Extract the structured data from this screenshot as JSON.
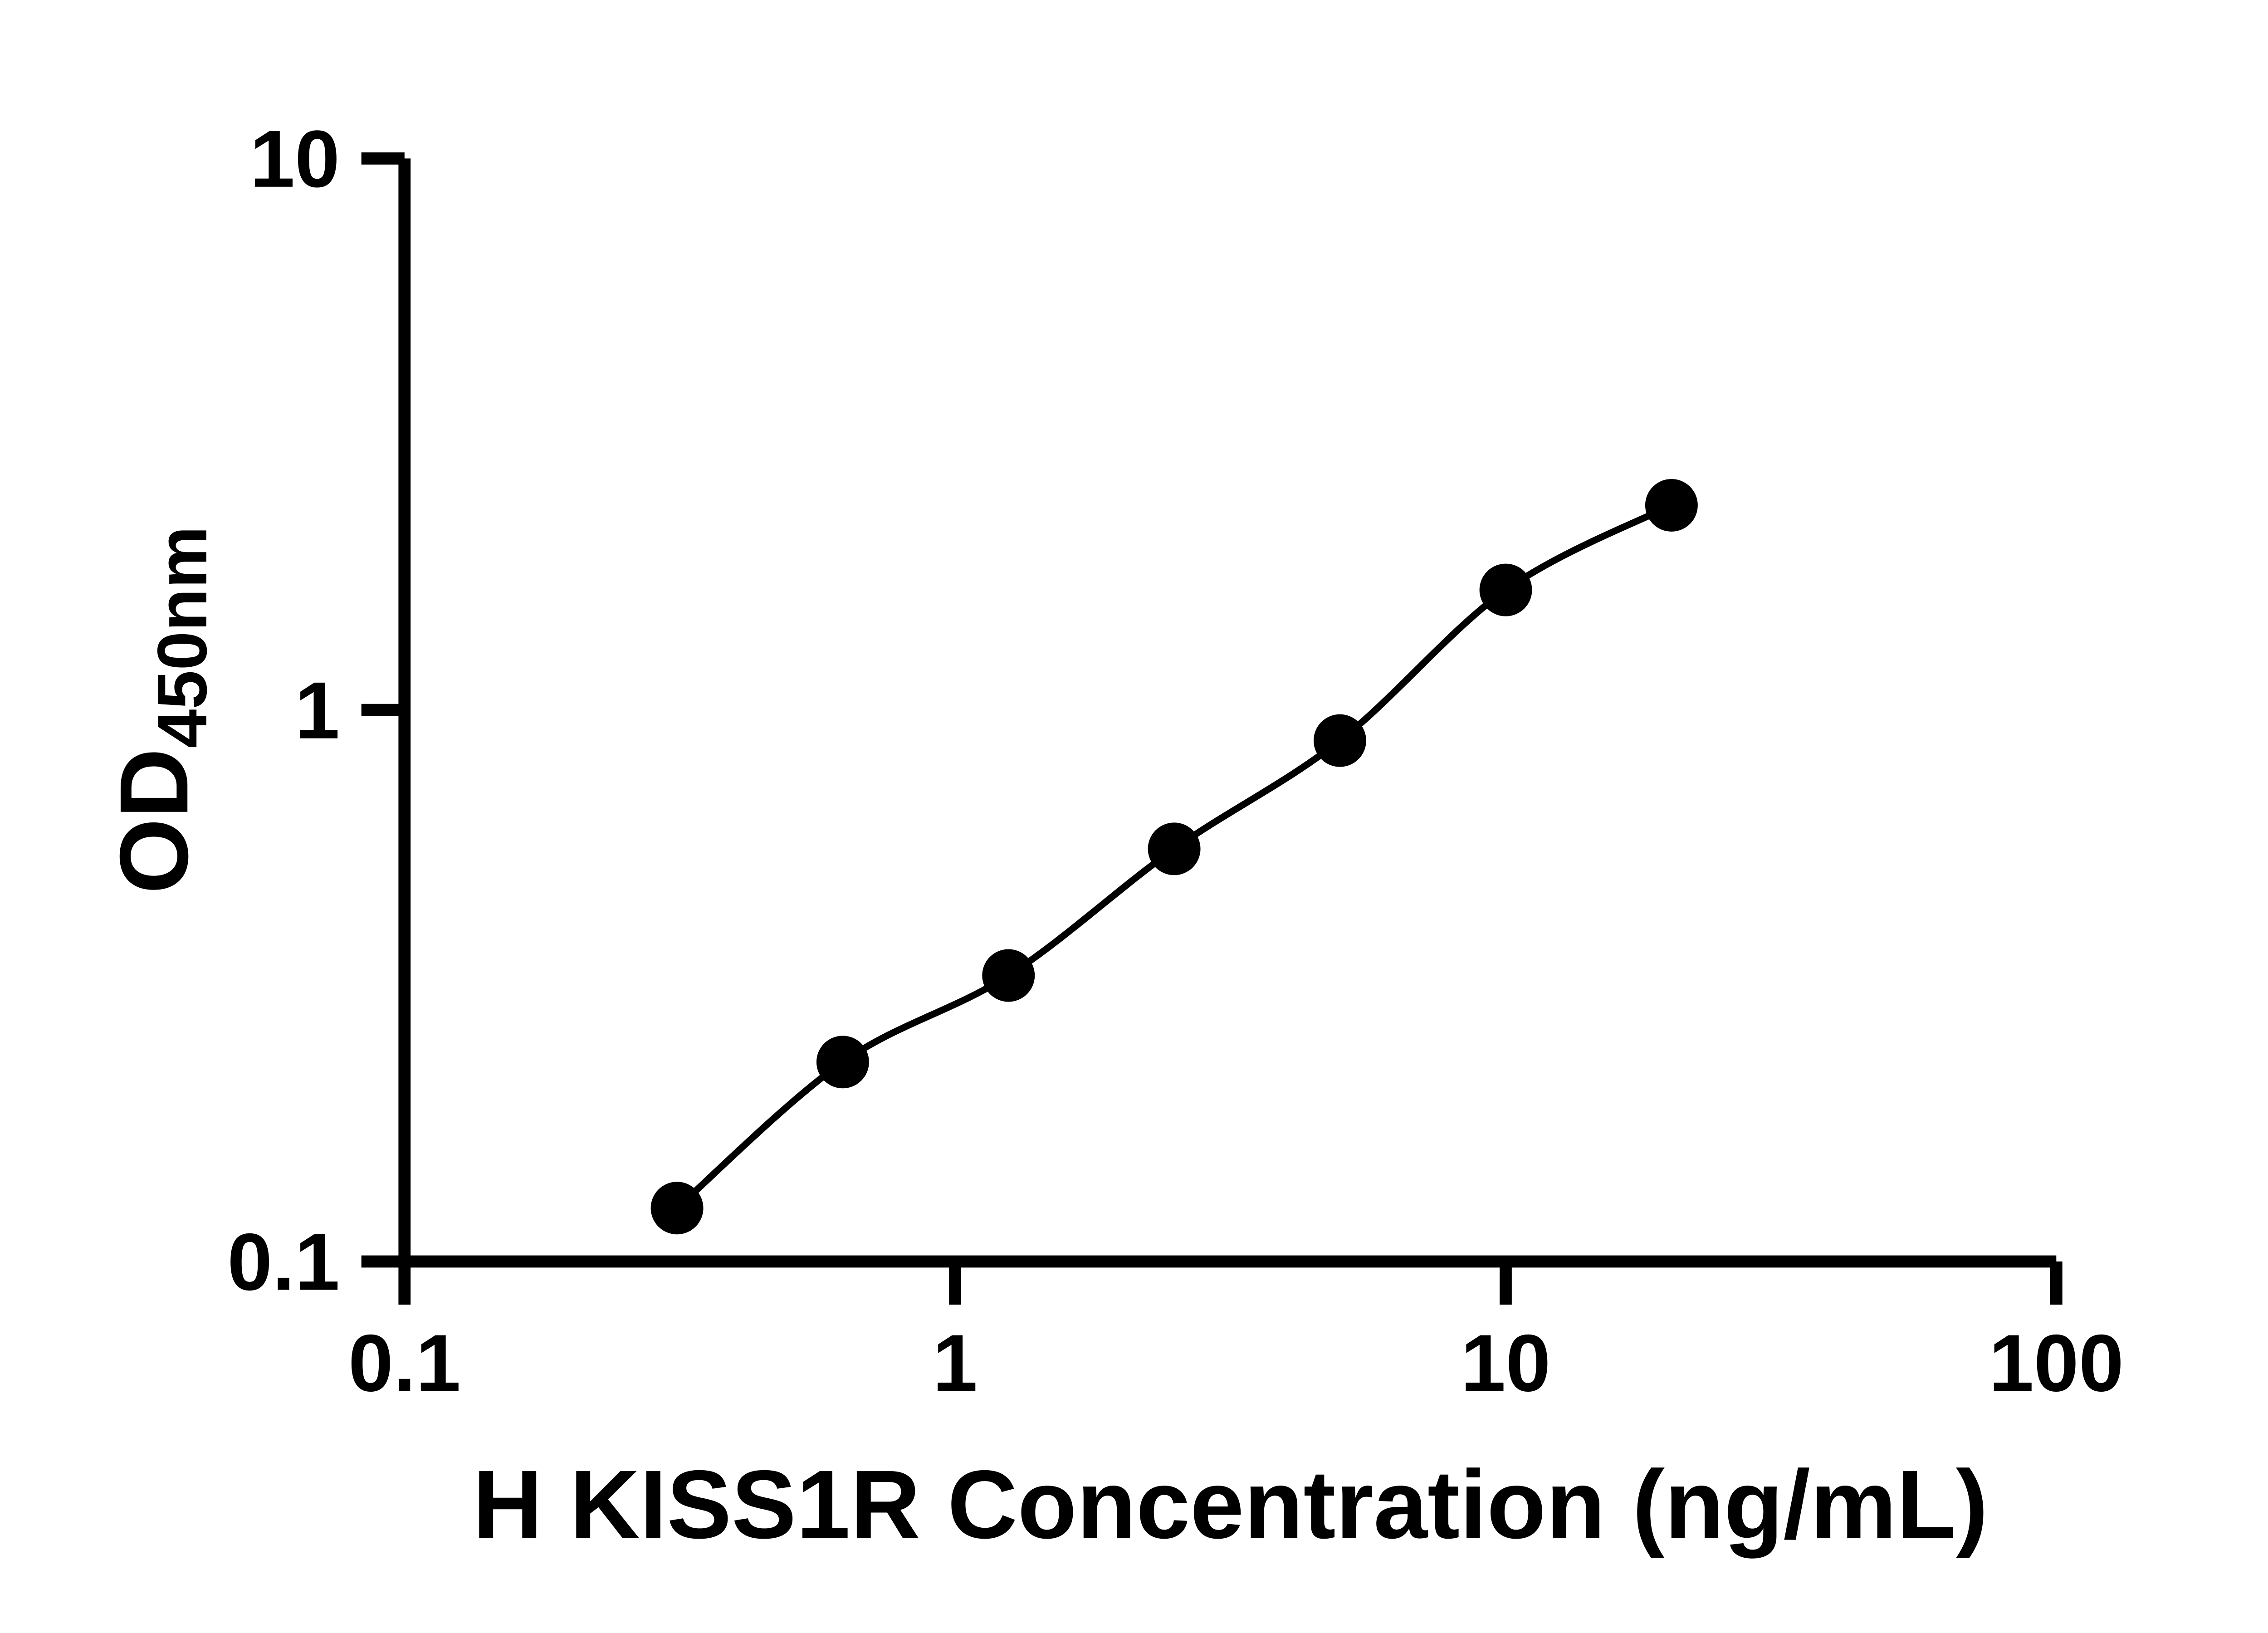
{
  "colors": {
    "background": "#ffffff",
    "axis": "#000000",
    "text": "#000000",
    "marker": "#000000",
    "curve": "#000000"
  },
  "chart_data": {
    "type": "scatter",
    "title": "",
    "xlabel": "H KISS1R Concentration (ng/mL)",
    "ylabel": "OD450nm",
    "ylabel_main": "OD",
    "ylabel_subscript": "450nm",
    "x_scale": "log",
    "y_scale": "log",
    "xlim": [
      0.1,
      100
    ],
    "ylim": [
      0.1,
      10
    ],
    "x_ticks": [
      "0.1",
      "1",
      "10",
      "100"
    ],
    "y_ticks": [
      "0.1",
      "1",
      "10"
    ],
    "grid": false,
    "legend": null,
    "series": [
      {
        "x": [
          0.3125,
          0.625,
          1.25,
          2.5,
          5,
          10,
          20
        ],
        "y": [
          0.125,
          0.23,
          0.33,
          0.56,
          0.88,
          1.65,
          2.35
        ],
        "marker": "filled-circle",
        "line": "smooth-fit"
      }
    ]
  }
}
